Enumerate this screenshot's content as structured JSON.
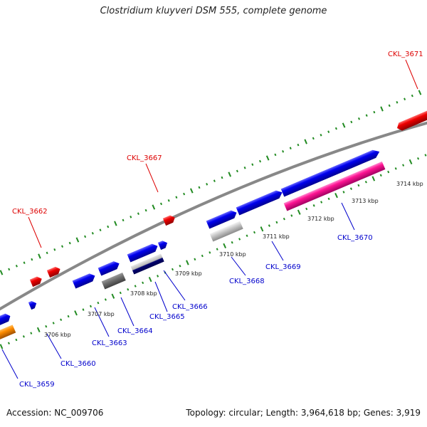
{
  "header": {
    "title": "Clostridium kluyveri DSM 555, complete genome"
  },
  "footer": {
    "accession": "Accession: NC_009706",
    "topology": "Topology: circular",
    "length": "Length: 3,964,618 bp",
    "genes": "Genes: 3,919",
    "sep1": "; ",
    "sep2": "; "
  },
  "colors": {
    "backbone": "#808080",
    "tick": "#228b22",
    "forward_gene": "#0000ee",
    "reverse_gene": "#ee0000",
    "pseudo_gene": "#ff1493",
    "rna_gene": "#a9a9a9",
    "misc_gene": "#ff8c00",
    "forward_label": "#0000cc",
    "reverse_label": "#dd0000"
  },
  "scale_labels": [
    {
      "text": "3706 kbp",
      "kbp": 3706
    },
    {
      "text": "3707 kbp",
      "kbp": 3707
    },
    {
      "text": "3708 kbp",
      "kbp": 3708
    },
    {
      "text": "3709 kbp",
      "kbp": 3709
    },
    {
      "text": "3710 kbp",
      "kbp": 3710
    },
    {
      "text": "3711 kbp",
      "kbp": 3711
    },
    {
      "text": "3712 kbp",
      "kbp": 3712
    },
    {
      "text": "3713 kbp",
      "kbp": 3713
    },
    {
      "text": "3714 kbp",
      "kbp": 3714
    }
  ],
  "gene_labels": [
    {
      "text": "CKL_3671",
      "strand": "reverse"
    },
    {
      "text": "CKL_3667",
      "strand": "reverse"
    },
    {
      "text": "CKL_3662",
      "strand": "reverse"
    },
    {
      "text": "CKL_3670",
      "strand": "forward"
    },
    {
      "text": "CKL_3669",
      "strand": "forward"
    },
    {
      "text": "CKL_3668",
      "strand": "forward"
    },
    {
      "text": "CKL_3666",
      "strand": "forward"
    },
    {
      "text": "CKL_3665",
      "strand": "forward"
    },
    {
      "text": "CKL_3664",
      "strand": "forward"
    },
    {
      "text": "CKL_3663",
      "strand": "forward"
    },
    {
      "text": "CKL_3660",
      "strand": "forward"
    },
    {
      "text": "CKL_3659",
      "strand": "forward"
    }
  ]
}
